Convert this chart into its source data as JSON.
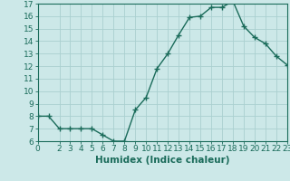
{
  "x": [
    0,
    1,
    2,
    3,
    4,
    5,
    6,
    7,
    8,
    9,
    10,
    11,
    12,
    13,
    14,
    15,
    16,
    17,
    18,
    19,
    20,
    21,
    22,
    23
  ],
  "y": [
    8.0,
    8.0,
    7.0,
    7.0,
    7.0,
    7.0,
    6.5,
    6.0,
    6.0,
    8.5,
    9.5,
    11.8,
    13.0,
    14.5,
    15.9,
    16.0,
    16.7,
    16.7,
    17.2,
    15.2,
    14.3,
    13.8,
    12.8,
    12.1
  ],
  "line_color": "#1a6b5a",
  "marker": "+",
  "marker_size": 4,
  "marker_linewidth": 1.0,
  "line_width": 1.0,
  "bg_color": "#cce8e8",
  "grid_color": "#aad0d0",
  "xlabel": "Humidex (Indice chaleur)",
  "xlim": [
    0,
    23
  ],
  "ylim": [
    6,
    17
  ],
  "yticks": [
    6,
    7,
    8,
    9,
    10,
    11,
    12,
    13,
    14,
    15,
    16,
    17
  ],
  "xticks": [
    0,
    2,
    3,
    4,
    5,
    6,
    7,
    8,
    9,
    10,
    11,
    12,
    13,
    14,
    15,
    16,
    17,
    18,
    19,
    20,
    21,
    22,
    23
  ],
  "tick_fontsize": 6.5,
  "label_fontsize": 7.5
}
